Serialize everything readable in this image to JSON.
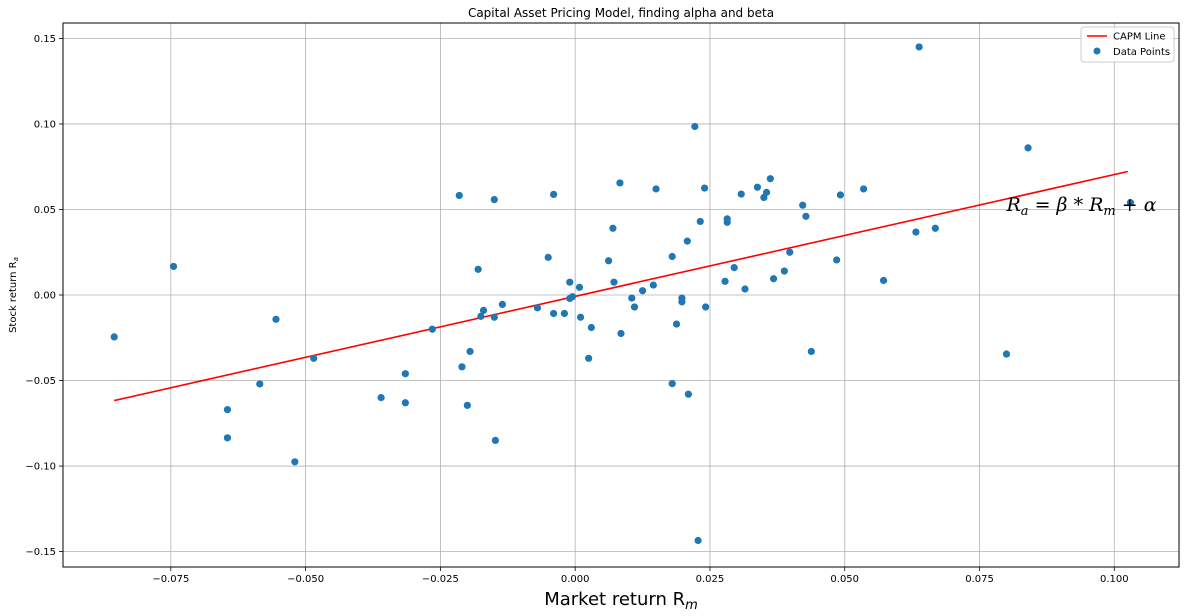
{
  "chart_data": {
    "type": "scatter",
    "title": "Capital Asset Pricing Model, finding alpha and beta",
    "xlabel": "Market return R",
    "xlabel_sub": "m",
    "ylabel": "Stock return R",
    "ylabel_sub": "a",
    "xlim": [
      -0.095,
      0.112
    ],
    "ylim": [
      -0.159,
      0.159
    ],
    "xticks": [
      -0.075,
      -0.05,
      -0.025,
      0.0,
      0.025,
      0.05,
      0.075,
      0.1
    ],
    "xtick_labels": [
      "−0.075",
      "−0.050",
      "−0.025",
      "0.000",
      "0.025",
      "0.050",
      "0.075",
      "0.100"
    ],
    "yticks": [
      -0.15,
      -0.1,
      -0.05,
      0.0,
      0.05,
      0.1,
      0.15
    ],
    "ytick_labels": [
      "−0.15",
      "−0.10",
      "−0.05",
      "0.00",
      "0.05",
      "0.10",
      "0.15"
    ],
    "grid": true,
    "legend_position": "top-right",
    "colors": {
      "line": "#ff0000",
      "points": "#1f77b4",
      "grid": "#b0b0b0"
    },
    "annotation": {
      "text": "R_a = β * R_m + α",
      "R": "R",
      "sub_a": "a",
      "eq": " = β * ",
      "R2": "R",
      "sub_m": "m",
      "tail": " + α",
      "x": 0.08,
      "y": 0.051
    },
    "series": [
      {
        "name": "CAPM Line",
        "kind": "line",
        "x": [
          -0.0855,
          0.1025
        ],
        "y": [
          -0.0617,
          0.0722
        ]
      },
      {
        "name": "Data Points",
        "kind": "scatter",
        "x": [
          -0.0855,
          -0.0745,
          -0.0645,
          -0.0645,
          -0.0585,
          -0.0555,
          -0.052,
          -0.0485,
          -0.036,
          -0.0315,
          -0.0315,
          -0.0265,
          -0.0215,
          -0.021,
          -0.02,
          -0.0195,
          -0.018,
          -0.0175,
          -0.017,
          -0.015,
          -0.015,
          -0.0148,
          -0.0135,
          -0.007,
          -0.005,
          -0.004,
          -0.004,
          -0.002,
          -0.001,
          -0.001,
          -0.0005,
          0.0008,
          0.001,
          0.0025,
          0.003,
          0.0062,
          0.007,
          0.0072,
          0.0083,
          0.0085,
          0.0105,
          0.011,
          0.0125,
          0.0145,
          0.015,
          0.018,
          0.018,
          0.0188,
          0.0198,
          0.0198,
          0.0208,
          0.021,
          0.0222,
          0.0228,
          0.0232,
          0.024,
          0.0242,
          0.0278,
          0.0282,
          0.0282,
          0.0295,
          0.0308,
          0.0315,
          0.0338,
          0.035,
          0.0355,
          0.0362,
          0.0368,
          0.0388,
          0.0398,
          0.0422,
          0.0428,
          0.0438,
          0.0485,
          0.0492,
          0.0535,
          0.0572,
          0.0632,
          0.0638,
          0.0668,
          0.08,
          0.084,
          0.103
        ],
        "y": [
          -0.0245,
          0.0167,
          -0.067,
          -0.0835,
          -0.052,
          -0.0142,
          -0.0975,
          -0.037,
          -0.06,
          -0.046,
          -0.063,
          -0.02,
          0.0582,
          -0.042,
          -0.0645,
          -0.033,
          0.015,
          -0.0125,
          -0.009,
          0.0558,
          -0.013,
          -0.085,
          -0.0055,
          -0.0075,
          0.022,
          0.0588,
          -0.0108,
          -0.0108,
          0.0075,
          -0.002,
          -0.001,
          0.0045,
          -0.013,
          -0.037,
          -0.019,
          0.02,
          0.039,
          0.0075,
          0.0655,
          -0.0225,
          -0.0018,
          -0.007,
          0.0025,
          0.0058,
          0.062,
          -0.0518,
          0.0225,
          -0.017,
          -0.0018,
          -0.004,
          0.0315,
          -0.058,
          0.0985,
          -0.1435,
          0.043,
          0.0625,
          -0.007,
          0.008,
          0.0425,
          0.0445,
          0.016,
          0.059,
          0.0035,
          0.063,
          0.057,
          0.06,
          0.068,
          0.0095,
          0.014,
          0.025,
          0.0525,
          0.046,
          -0.033,
          0.0205,
          0.0585,
          0.062,
          0.0085,
          0.0368,
          0.145,
          0.039,
          -0.0345,
          0.086,
          0.054
        ]
      }
    ]
  }
}
